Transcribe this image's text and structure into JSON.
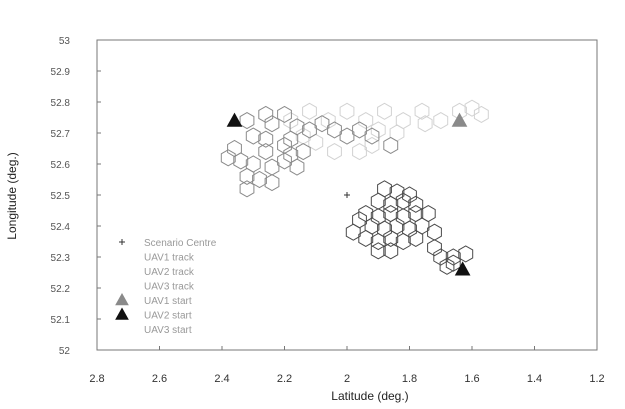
{
  "chart_data": {
    "type": "scatter",
    "xlabel": "Latitude (deg.)",
    "ylabel": "Longitude (deg.)",
    "xlim": [
      -2.8,
      -1.2
    ],
    "ylim": [
      52,
      53
    ],
    "x_reversed": true,
    "x_ticks": [
      -2.8,
      -2.6,
      -2.4,
      -2.2,
      -2,
      -1.8,
      -1.6,
      -1.4,
      -1.2
    ],
    "x_tick_labels": [
      "2.8",
      "2.6",
      "2.4",
      "2.2",
      "2",
      "1.8",
      "1.6",
      "1.4",
      "1.2"
    ],
    "y_ticks": [
      52,
      52.1,
      52.2,
      52.3,
      52.4,
      52.5,
      52.6,
      52.7,
      52.8,
      52.9,
      53
    ],
    "y_tick_labels": [
      "52",
      "52.1",
      "52.2",
      "52.3",
      "52.4",
      "52.5",
      "52.6",
      "52.7",
      "52.8",
      "52.9",
      "53"
    ],
    "grid": false,
    "legend": {
      "placement": "bottom-left",
      "entries": [
        "Scenario Centre",
        "UAV1 track",
        "UAV2 track",
        "UAV3 track",
        "UAV1 start",
        "UAV2 start",
        "UAV3 start"
      ]
    },
    "series": [
      {
        "name": "Scenario Centre",
        "marker": "plus",
        "color": "#333333",
        "points": [
          [
            -2.0,
            52.5
          ]
        ]
      },
      {
        "name": "UAV1 start",
        "marker": "triangle",
        "color": "#8a8a8a",
        "points": [
          [
            -1.64,
            52.74
          ]
        ]
      },
      {
        "name": "UAV2 start",
        "marker": "triangle",
        "color": "#111111",
        "points": [
          [
            -2.36,
            52.74
          ],
          [
            -1.63,
            52.26
          ]
        ]
      },
      {
        "name": "UAV1 track",
        "marker": "hexagon",
        "color": "#d2d2d2",
        "points": [
          [
            -2.18,
            52.74
          ],
          [
            -2.12,
            52.77
          ],
          [
            -2.06,
            52.74
          ],
          [
            -2.0,
            52.77
          ],
          [
            -1.94,
            52.74
          ],
          [
            -1.88,
            52.77
          ],
          [
            -1.82,
            52.74
          ],
          [
            -1.76,
            52.77
          ],
          [
            -1.7,
            52.74
          ],
          [
            -1.64,
            52.77
          ],
          [
            -1.6,
            52.78
          ],
          [
            -1.57,
            52.76
          ],
          [
            -1.84,
            52.7
          ],
          [
            -1.9,
            52.71
          ],
          [
            -2.1,
            52.67
          ],
          [
            -2.04,
            52.64
          ],
          [
            -1.96,
            52.64
          ],
          [
            -1.92,
            52.66
          ],
          [
            -2.14,
            52.69
          ],
          [
            -1.75,
            52.73
          ]
        ]
      },
      {
        "name": "UAV2 track",
        "marker": "hexagon",
        "color": "#8a8a8a",
        "points": [
          [
            -2.32,
            52.74
          ],
          [
            -2.26,
            52.76
          ],
          [
            -2.24,
            52.73
          ],
          [
            -2.2,
            52.76
          ],
          [
            -2.16,
            52.72
          ],
          [
            -2.12,
            52.71
          ],
          [
            -2.08,
            52.73
          ],
          [
            -2.04,
            52.71
          ],
          [
            -2.0,
            52.69
          ],
          [
            -1.96,
            52.71
          ],
          [
            -1.92,
            52.69
          ],
          [
            -2.3,
            52.69
          ],
          [
            -2.36,
            52.65
          ],
          [
            -2.26,
            52.64
          ],
          [
            -2.2,
            52.66
          ],
          [
            -2.34,
            52.61
          ],
          [
            -2.3,
            52.6
          ],
          [
            -2.24,
            52.59
          ],
          [
            -2.2,
            52.61
          ],
          [
            -2.18,
            52.63
          ],
          [
            -2.16,
            52.59
          ],
          [
            -2.14,
            52.64
          ],
          [
            -2.32,
            52.56
          ],
          [
            -2.28,
            52.55
          ],
          [
            -2.24,
            52.54
          ],
          [
            -2.38,
            52.62
          ],
          [
            -2.18,
            52.68
          ],
          [
            -2.26,
            52.68
          ],
          [
            -2.32,
            52.52
          ],
          [
            -1.86,
            52.66
          ]
        ]
      },
      {
        "name": "UAV3 track",
        "marker": "hexagon",
        "color": "#4a4a4a",
        "points": [
          [
            -1.94,
            52.44
          ],
          [
            -1.9,
            52.43
          ],
          [
            -1.86,
            52.44
          ],
          [
            -1.82,
            52.43
          ],
          [
            -1.78,
            52.44
          ],
          [
            -1.92,
            52.4
          ],
          [
            -1.88,
            52.39
          ],
          [
            -1.84,
            52.4
          ],
          [
            -1.8,
            52.39
          ],
          [
            -1.76,
            52.4
          ],
          [
            -1.94,
            52.36
          ],
          [
            -1.9,
            52.35
          ],
          [
            -1.86,
            52.36
          ],
          [
            -1.82,
            52.35
          ],
          [
            -1.78,
            52.36
          ],
          [
            -1.9,
            52.48
          ],
          [
            -1.86,
            52.47
          ],
          [
            -1.82,
            52.48
          ],
          [
            -1.78,
            52.47
          ],
          [
            -1.74,
            52.44
          ],
          [
            -1.88,
            52.52
          ],
          [
            -1.84,
            52.51
          ],
          [
            -1.8,
            52.5
          ],
          [
            -1.98,
            52.38
          ],
          [
            -1.96,
            52.42
          ],
          [
            -1.72,
            52.38
          ],
          [
            -1.72,
            52.33
          ],
          [
            -1.7,
            52.3
          ],
          [
            -1.66,
            52.3
          ],
          [
            -1.62,
            52.31
          ],
          [
            -1.68,
            52.27
          ],
          [
            -1.66,
            52.28
          ],
          [
            -1.9,
            52.32
          ],
          [
            -1.86,
            52.32
          ]
        ]
      }
    ]
  }
}
